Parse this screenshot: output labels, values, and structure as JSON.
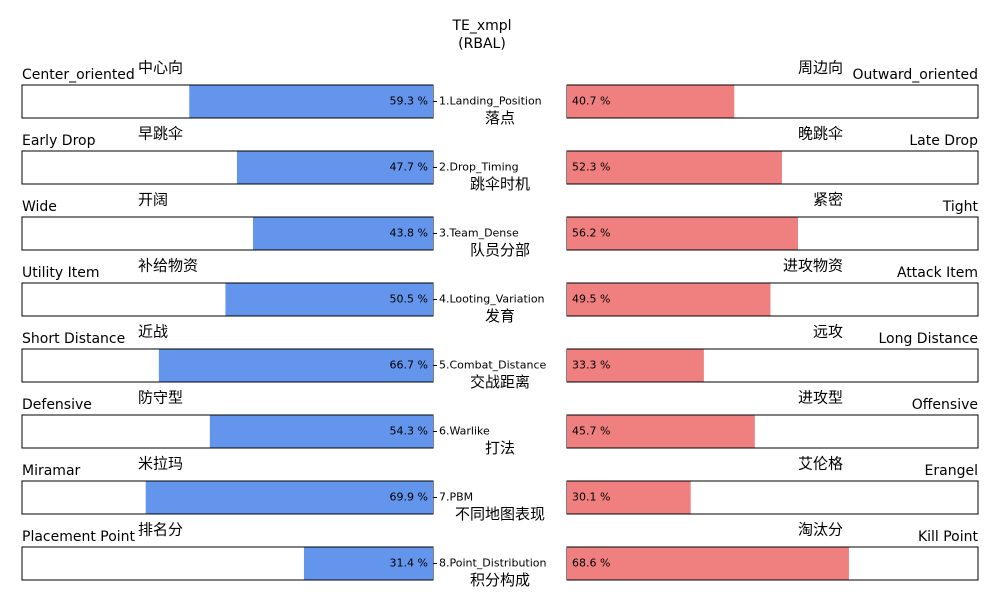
{
  "chart_data": {
    "type": "diverging_bar",
    "title": "TE_xmpl",
    "subtitle": "(RBAL)",
    "categories": [
      "1.Landing_Position",
      "2.Drop_Timing",
      "3.Team_Dense",
      "4.Looting_Variation",
      "5.Combat_Distance",
      "6.Warlike",
      "7.PBM",
      "8.Point_Distribution"
    ],
    "categories_zh": [
      "落点",
      "跳伞时机",
      "队员分部",
      "发育",
      "交战距离",
      "打法",
      "不同地图表现",
      "积分构成"
    ],
    "left_labels": [
      "Center_oriented",
      "Early Drop",
      "Wide",
      "Utility Item",
      "Short Distance",
      "Defensive",
      "Miramar",
      "Placement Point"
    ],
    "left_labels_zh": [
      "中心向",
      "早跳伞",
      "开阔",
      "补给物资",
      "近战",
      "防守型",
      "米拉玛",
      "排名分"
    ],
    "right_labels": [
      "Outward_oriented",
      "Late Drop",
      "Tight",
      "Attack Item",
      "Long Distance",
      "Offensive",
      "Erangel",
      "Kill Point"
    ],
    "right_labels_zh": [
      "周边向",
      "晚跳伞",
      "紧密",
      "进攻物资",
      "远攻",
      "进攻型",
      "艾伦格",
      "淘汰分"
    ],
    "series": [
      {
        "color": "#6495ed",
        "values": [
          59.3,
          47.7,
          43.8,
          50.5,
          66.7,
          54.3,
          69.9,
          31.4
        ],
        "value_labels": [
          "59.3 %",
          "47.7 %",
          "43.8 %",
          "50.5 %",
          "66.7 %",
          "54.3 %",
          "69.9 %",
          "31.4 %"
        ]
      },
      {
        "color": "#f08080",
        "values": [
          40.7,
          52.3,
          56.2,
          49.5,
          33.3,
          45.7,
          30.1,
          68.6
        ],
        "value_labels": [
          "40.7 %",
          "52.3 %",
          "56.2 %",
          "49.5 %",
          "33.3 %",
          "45.7 %",
          "30.1 %",
          "68.6 %"
        ]
      }
    ],
    "xlim": [
      0,
      100
    ]
  }
}
